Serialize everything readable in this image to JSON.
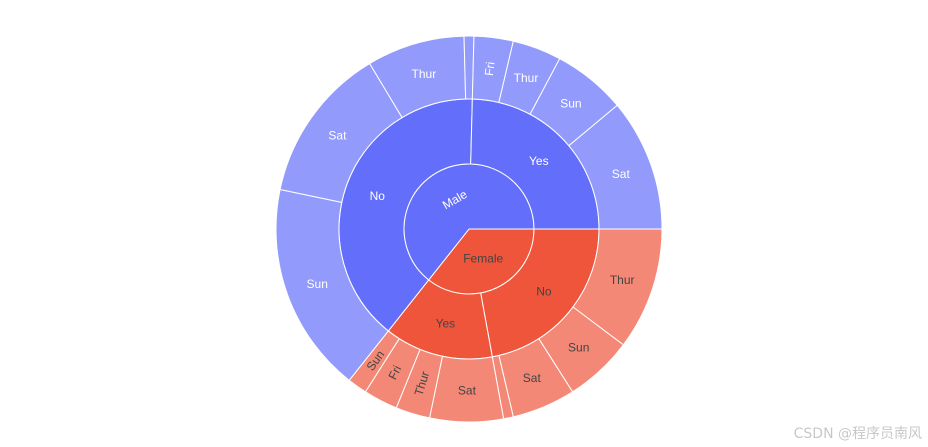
{
  "chart_data": {
    "type": "sunburst",
    "levels": [
      "sex",
      "smoker",
      "day"
    ],
    "nodes": [
      {
        "label": "Male",
        "value": 157,
        "color": "#636efa",
        "text_color": "#ffffff",
        "children": [
          {
            "label": "No",
            "value": 97,
            "children": [
              {
                "label": "Sun",
                "value": 43
              },
              {
                "label": "Sat",
                "value": 32
              },
              {
                "label": "Thur",
                "value": 20
              },
              {
                "label": "Fri",
                "value": 2
              }
            ]
          },
          {
            "label": "Yes",
            "value": 60,
            "children": [
              {
                "label": "Fri",
                "value": 8
              },
              {
                "label": "Thur",
                "value": 10
              },
              {
                "label": "Sun",
                "value": 15
              },
              {
                "label": "Sat",
                "value": 27
              }
            ]
          }
        ]
      },
      {
        "label": "Female",
        "value": 87,
        "color": "#ef553b",
        "text_color": "#444444",
        "children": [
          {
            "label": "No",
            "value": 54,
            "children": [
              {
                "label": "Thur",
                "value": 25
              },
              {
                "label": "Sun",
                "value": 14
              },
              {
                "label": "Sat",
                "value": 13
              },
              {
                "label": "Fri",
                "value": 2
              }
            ]
          },
          {
            "label": "Yes",
            "value": 33,
            "children": [
              {
                "label": "Sat",
                "value": 15
              },
              {
                "label": "Thur",
                "value": 7
              },
              {
                "label": "Fri",
                "value": 7
              },
              {
                "label": "Sun",
                "value": 4
              }
            ]
          }
        ]
      }
    ]
  },
  "watermark": "CSDN @程序员南风"
}
